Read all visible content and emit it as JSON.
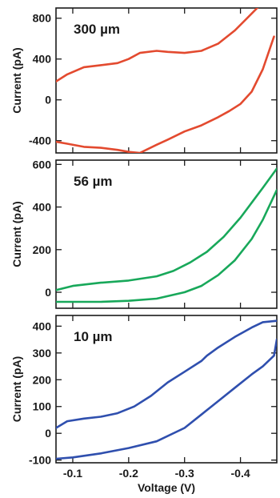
{
  "chart_data": [
    {
      "type": "line",
      "panel_label": "300 µm",
      "xlabel": "",
      "ylabel": "Current (pA)",
      "xlim": [
        -0.07,
        -0.465
      ],
      "ylim": [
        -520,
        900
      ],
      "yticks": [
        -400,
        0,
        400,
        800
      ],
      "ytick_labels": [
        "-400",
        "0",
        "400",
        "800"
      ],
      "xticks": [
        -0.1,
        -0.2,
        -0.3,
        -0.4
      ],
      "color": "#e34a2f",
      "series": [
        {
          "x": [
            -0.07,
            -0.09,
            -0.12,
            -0.15,
            -0.18,
            -0.2,
            -0.22,
            -0.25,
            -0.27,
            -0.3,
            -0.33,
            -0.36,
            -0.38,
            -0.4,
            -0.42,
            -0.44,
            -0.46
          ],
          "y": [
            -410,
            -430,
            -460,
            -470,
            -490,
            -510,
            -520,
            -440,
            -390,
            -310,
            -250,
            -170,
            -110,
            -40,
            80,
            300,
            620
          ]
        },
        {
          "x": [
            -0.07,
            -0.09,
            -0.12,
            -0.15,
            -0.18,
            -0.2,
            -0.22,
            -0.25,
            -0.27,
            -0.3,
            -0.33,
            -0.36,
            -0.39,
            -0.41,
            -0.43,
            -0.44
          ],
          "y": [
            180,
            250,
            320,
            340,
            360,
            400,
            460,
            480,
            470,
            460,
            480,
            550,
            680,
            790,
            900,
            960
          ]
        }
      ]
    },
    {
      "type": "line",
      "panel_label": "56 µm",
      "xlabel": "",
      "ylabel": "Current (pA)",
      "xlim": [
        -0.07,
        -0.465
      ],
      "ylim": [
        -75,
        620
      ],
      "yticks": [
        0,
        200,
        400,
        600
      ],
      "ytick_labels": [
        "0",
        "200",
        "400",
        "600"
      ],
      "xticks": [
        -0.1,
        -0.2,
        -0.3,
        -0.4
      ],
      "color": "#18a85a",
      "series": [
        {
          "x": [
            -0.07,
            -0.1,
            -0.15,
            -0.2,
            -0.25,
            -0.3,
            -0.33,
            -0.36,
            -0.39,
            -0.42,
            -0.44,
            -0.465
          ],
          "y": [
            -45,
            -45,
            -45,
            -40,
            -30,
            0,
            30,
            80,
            150,
            250,
            340,
            480
          ]
        },
        {
          "x": [
            -0.07,
            -0.1,
            -0.15,
            -0.2,
            -0.25,
            -0.28,
            -0.31,
            -0.34,
            -0.37,
            -0.4,
            -0.42,
            -0.44,
            -0.465
          ],
          "y": [
            10,
            30,
            45,
            55,
            75,
            100,
            140,
            190,
            260,
            350,
            420,
            490,
            580
          ]
        }
      ]
    },
    {
      "type": "line",
      "panel_label": "10 µm",
      "xlabel": "Voltage (V)",
      "ylabel": "Current (pA)",
      "xlim": [
        -0.07,
        -0.465
      ],
      "ylim": [
        -110,
        440
      ],
      "yticks": [
        -100,
        0,
        100,
        200,
        300,
        400
      ],
      "ytick_labels": [
        "-100",
        "0",
        "100",
        "200",
        "300",
        "400"
      ],
      "xticks": [
        -0.1,
        -0.2,
        -0.3,
        -0.4
      ],
      "xtick_labels": [
        "-0.1",
        "-0.2",
        "-0.3",
        "-0.4"
      ],
      "color": "#2f4fae",
      "series": [
        {
          "x": [
            -0.07,
            -0.1,
            -0.15,
            -0.2,
            -0.25,
            -0.3,
            -0.33,
            -0.36,
            -0.39,
            -0.42,
            -0.44,
            -0.46,
            -0.465
          ],
          "y": [
            -95,
            -90,
            -75,
            -55,
            -30,
            20,
            70,
            120,
            170,
            220,
            250,
            290,
            350
          ]
        },
        {
          "x": [
            -0.07,
            -0.09,
            -0.12,
            -0.15,
            -0.18,
            -0.21,
            -0.24,
            -0.27,
            -0.3,
            -0.33,
            -0.34,
            -0.36,
            -0.39,
            -0.42,
            -0.44,
            -0.465
          ],
          "y": [
            20,
            45,
            55,
            62,
            75,
            100,
            140,
            190,
            230,
            270,
            290,
            320,
            360,
            395,
            415,
            420
          ]
        }
      ]
    }
  ]
}
